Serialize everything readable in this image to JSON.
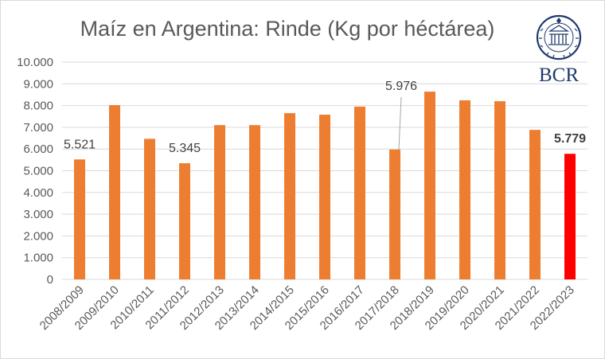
{
  "chart_data": {
    "type": "bar",
    "title": "Maíz en Argentina: Rinde (Kg por héctárea)",
    "categories": [
      "2008/2009",
      "2009/2010",
      "2010/2011",
      "2011/2012",
      "2012/2013",
      "2013/2014",
      "2014/2015",
      "2015/2016",
      "2016/2017",
      "2017/2018",
      "2018/2019",
      "2019/2020",
      "2020/2021",
      "2021/2022",
      "2022/2023"
    ],
    "values": [
      5521,
      8020,
      6470,
      5345,
      7100,
      7100,
      7650,
      7580,
      7950,
      5976,
      8640,
      8240,
      8200,
      6880,
      5779
    ],
    "ylim": [
      0,
      10000
    ],
    "yticks": [
      "0",
      "1.000",
      "2.000",
      "3.000",
      "4.000",
      "5.000",
      "6.000",
      "7.000",
      "8.000",
      "9.000",
      "10.000"
    ],
    "grid": true,
    "bar_color": "#ED7D31",
    "highlight_color": "#FF0000",
    "data_labels": [
      {
        "index": 0,
        "text": "5.521",
        "bold": false
      },
      {
        "index": 3,
        "text": "5.345",
        "bold": false
      },
      {
        "index": 9,
        "text": "5.976",
        "bold": false
      },
      {
        "index": 14,
        "text": "5.779",
        "bold": true
      }
    ]
  },
  "logo": {
    "text": "BCR",
    "seal_text": "BOLSA DE COMERCIO DE ROSARIO",
    "color": "#1F3A6E"
  }
}
